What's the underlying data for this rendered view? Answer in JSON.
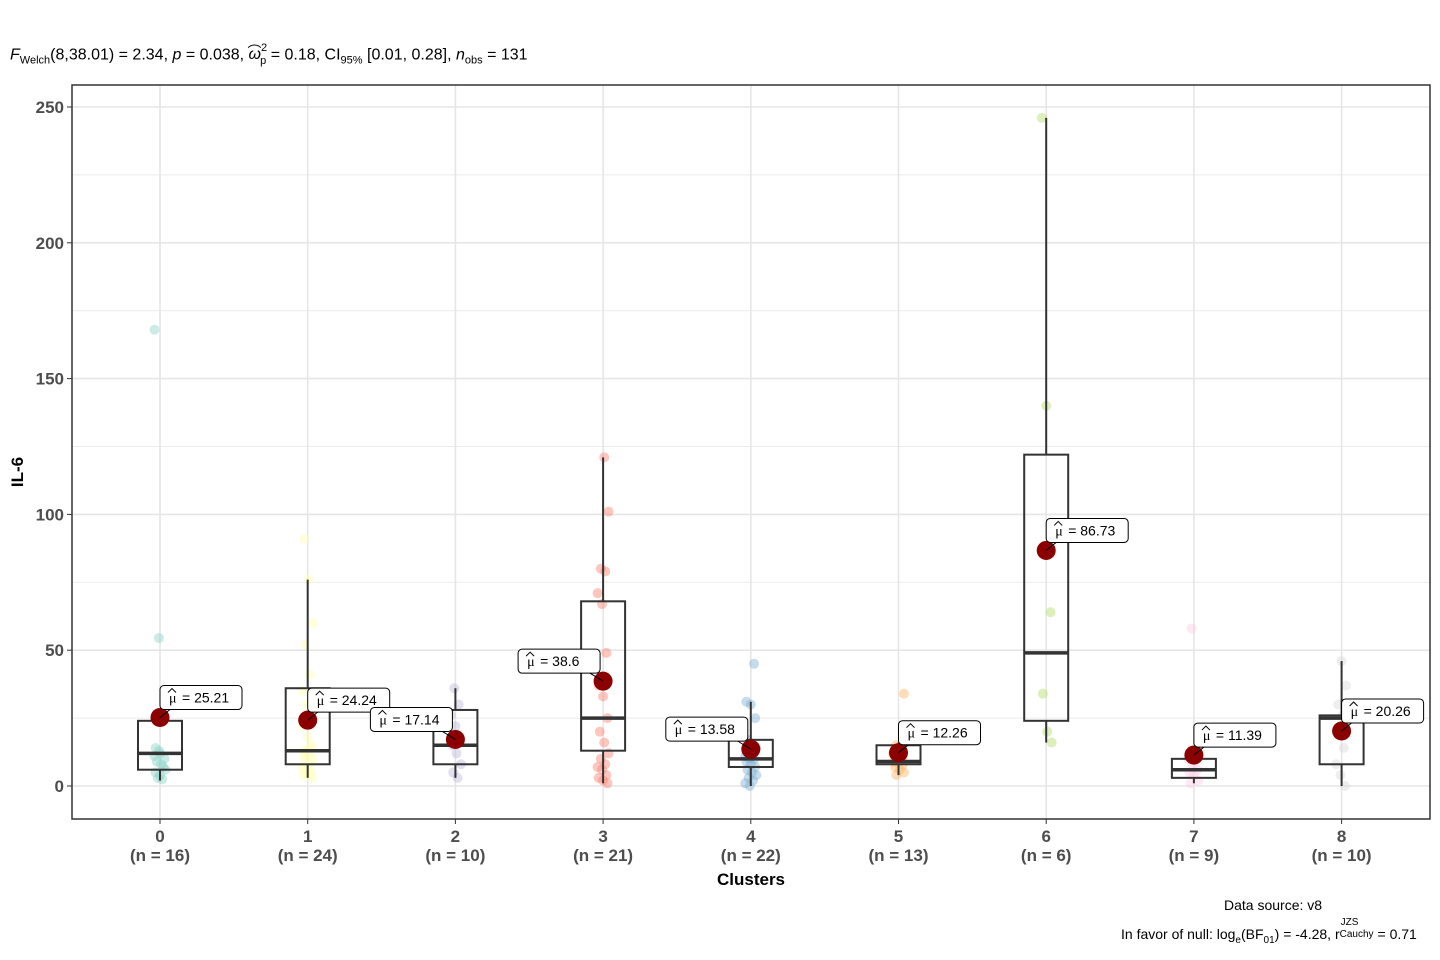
{
  "subtitle": {
    "F_label": "F",
    "F_sub": "Welch",
    "F_args": "(8,38.01) = 2.34, ",
    "p_label": "p",
    "p_value": " = 0.038, ",
    "omega_sym": "ω",
    "omega_sup": "2",
    "omega_sub": "p",
    "omega_value": " = 0.18, CI",
    "ci_sub": "95%",
    "ci_value": " [0.01, 0.28], ",
    "n_label": "n",
    "n_sub": "obs",
    "n_value": " = 131"
  },
  "caption": {
    "source": "Data source: v8",
    "bf_prefix": "In favor of null: log",
    "bf_e": "e",
    "bf_mid": "(BF",
    "bf_01": "01",
    "bf_val": ") = -4.28, r",
    "r_sup": "JZS",
    "r_sub": "Cauchy",
    "r_val": " = 0.71"
  },
  "chart_data": {
    "type": "box",
    "xlabel": "Clusters",
    "ylabel": "IL-6",
    "ylim": [
      -12,
      262
    ],
    "yticks": [
      0,
      50,
      100,
      150,
      200,
      250
    ],
    "grid": true,
    "mean_color": "#8B0000",
    "categories": [
      {
        "name": "0",
        "n_label": "(n = 16)",
        "color": "#8DD3C7",
        "q1": 6,
        "median": 12,
        "q3": 24,
        "whisker_low": 2,
        "whisker_high": 25,
        "mean": 25.21,
        "mean_label": "= 25.21",
        "points": [
          168,
          54.5,
          25,
          14,
          12,
          10,
          9,
          8,
          6,
          3,
          2.5,
          11,
          13,
          7,
          5,
          4
        ]
      },
      {
        "name": "1",
        "n_label": "(n = 24)",
        "color": "#FFFFB3",
        "q1": 8,
        "median": 13,
        "q3": 36,
        "whisker_low": 3,
        "whisker_high": 76,
        "mean": 24.24,
        "mean_label": "= 24.24",
        "points": [
          91,
          76,
          60,
          52,
          41,
          35,
          30,
          25,
          22,
          18,
          15,
          13,
          12,
          10,
          9,
          8,
          7,
          6,
          5,
          4,
          4,
          3,
          11,
          14
        ]
      },
      {
        "name": "2",
        "n_label": "(n = 10)",
        "color": "#BEBADA",
        "q1": 8,
        "median": 15,
        "q3": 28,
        "whisker_low": 3,
        "whisker_high": 36,
        "mean": 17.14,
        "mean_label": "= 17.14",
        "points": [
          36,
          30,
          26,
          22,
          18,
          15,
          12,
          8,
          5,
          3
        ]
      },
      {
        "name": "3",
        "n_label": "(n = 21)",
        "color": "#FB8072",
        "q1": 13,
        "median": 25,
        "q3": 68,
        "whisker_low": 1,
        "whisker_high": 121,
        "mean": 38.6,
        "mean_label": "= 38.6",
        "points": [
          121,
          101,
          80,
          79,
          71,
          67,
          49,
          37,
          33,
          25,
          20,
          16,
          12,
          10,
          8,
          7,
          6,
          4,
          3,
          2,
          1
        ]
      },
      {
        "name": "4",
        "n_label": "(n = 22)",
        "color": "#80B1D3",
        "q1": 7,
        "median": 10,
        "q3": 17,
        "whisker_low": 0,
        "whisker_high": 31,
        "mean": 13.58,
        "mean_label": "= 13.58",
        "points": [
          45,
          31,
          30,
          25,
          17,
          15,
          14,
          13,
          12,
          11,
          10,
          10,
          9,
          8,
          7,
          6,
          5,
          4,
          3,
          2,
          1,
          0
        ]
      },
      {
        "name": "5",
        "n_label": "(n = 13)",
        "color": "#FDB462",
        "q1": 8,
        "median": 9,
        "q3": 15,
        "whisker_low": 4,
        "whisker_high": 16,
        "mean": 12.26,
        "mean_label": "= 12.26",
        "points": [
          34,
          15,
          13,
          12,
          11,
          10,
          9,
          9,
          8,
          7,
          6,
          5,
          4
        ]
      },
      {
        "name": "6",
        "n_label": "(n = 6)",
        "color": "#B3DE69",
        "q1": 24,
        "median": 49,
        "q3": 122,
        "whisker_low": 16,
        "whisker_high": 246,
        "mean": 86.73,
        "mean_label": "= 86.73",
        "points": [
          246,
          140,
          64,
          34,
          20,
          16
        ]
      },
      {
        "name": "7",
        "n_label": "(n = 9)",
        "color": "#FCCDE5",
        "q1": 3,
        "median": 6,
        "q3": 10,
        "whisker_low": 1,
        "whisker_high": 12,
        "mean": 11.39,
        "mean_label": "= 11.39",
        "points": [
          58,
          12,
          10,
          8,
          6,
          5,
          4,
          2,
          1
        ]
      },
      {
        "name": "8",
        "n_label": "(n = 10)",
        "color": "#D9D9D9",
        "q1": 8,
        "median": 25,
        "q3": 26,
        "whisker_low": 0,
        "whisker_high": 46,
        "mean": 20.26,
        "mean_label": "= 20.26",
        "points": [
          46,
          37,
          30,
          26,
          25,
          20,
          14,
          8,
          4,
          0
        ]
      }
    ]
  }
}
